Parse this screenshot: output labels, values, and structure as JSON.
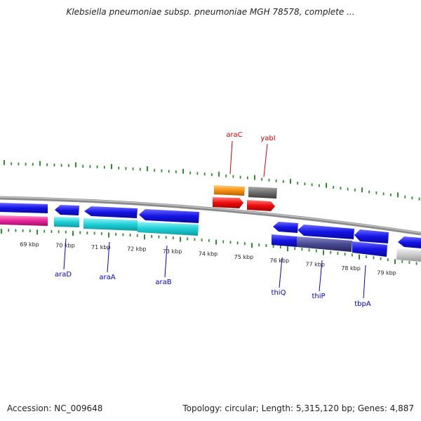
{
  "title": "Klebsiella pneumoniae subsp. pneumoniae MGH 78578, complete ...",
  "ticks": [
    {
      "label": "69 kbp"
    },
    {
      "label": "70 kbp"
    },
    {
      "label": "71 kbp"
    },
    {
      "label": "72 kbp"
    },
    {
      "label": "73 kbp"
    },
    {
      "label": "74 kbp"
    },
    {
      "label": "75 kbp"
    },
    {
      "label": "76 kbp"
    },
    {
      "label": "77 kbp"
    },
    {
      "label": "78 kbp"
    },
    {
      "label": "79 kbp"
    }
  ],
  "gene_labels": [
    {
      "name": "araC",
      "color": "#cc0000"
    },
    {
      "name": "yabI",
      "color": "#cc0000"
    },
    {
      "name": "araD",
      "color": "#0000cc"
    },
    {
      "name": "araA",
      "color": "#0000cc"
    },
    {
      "name": "araB",
      "color": "#0000cc"
    },
    {
      "name": "thiQ",
      "color": "#0000cc"
    },
    {
      "name": "thiP",
      "color": "#0000cc"
    },
    {
      "name": "tbpA",
      "color": "#0000cc"
    }
  ],
  "colors": {
    "backbone": "#8a8a8a",
    "tick": "#2e8b2e",
    "blue_gene": "#1414e6",
    "cyan_gene": "#1ecfd6",
    "magenta_gene": "#e6259a",
    "red_gene": "#ee0c0c",
    "orange_gene": "#f5900f",
    "grey_gene": "#6e6e6e",
    "slate_gene": "#484890",
    "light_gene": "#c8c8c8"
  },
  "footer": {
    "accession": "Accession: NC_009648",
    "summary": "Topology: circular; Length: 5,315,120 bp; Genes: 4,887"
  }
}
